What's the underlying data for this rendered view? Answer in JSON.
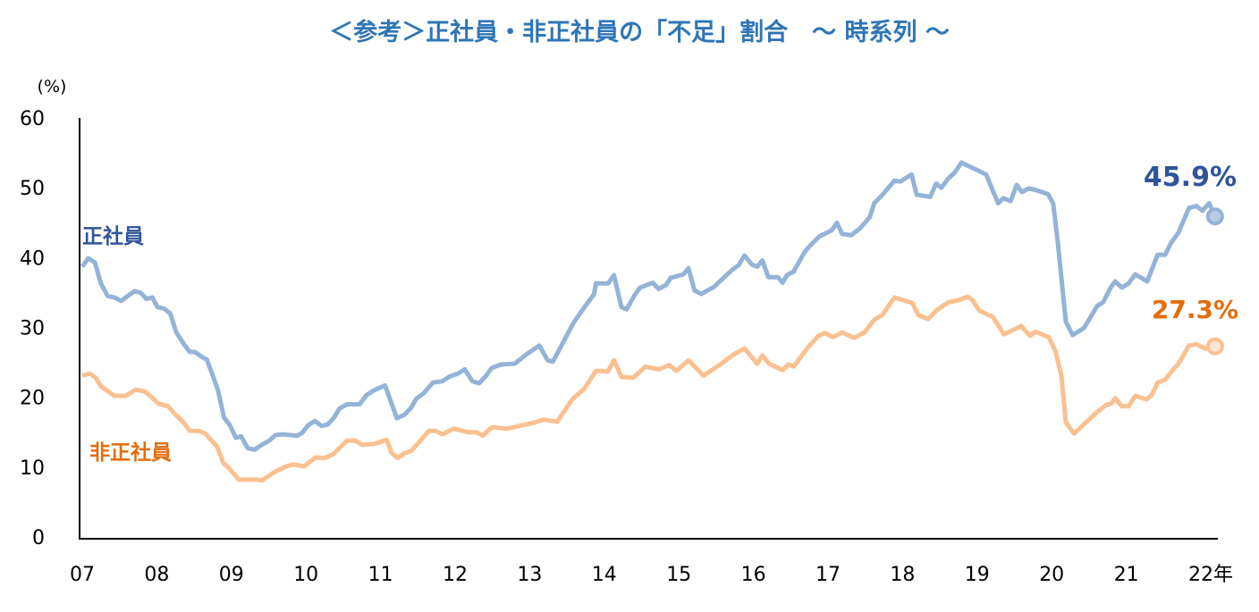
{
  "chart_data": {
    "type": "line",
    "title": "＜参考＞正社員・非正社員の「不足」割合　～ 時系列 ～",
    "ylabel": "(%)",
    "xlabel": "",
    "ylim": [
      0,
      60
    ],
    "yticks": [
      "0",
      "10",
      "20",
      "30",
      "40",
      "50",
      "60"
    ],
    "xlim": [
      2007,
      2022.2
    ],
    "xticks": [
      {
        "year": 2007,
        "label": "07"
      },
      {
        "year": 2008,
        "label": "08"
      },
      {
        "year": 2009,
        "label": "09"
      },
      {
        "year": 2010,
        "label": "10"
      },
      {
        "year": 2011,
        "label": "11"
      },
      {
        "year": 2012,
        "label": "12"
      },
      {
        "year": 2013,
        "label": "13"
      },
      {
        "year": 2014,
        "label": "14"
      },
      {
        "year": 2015,
        "label": "15"
      },
      {
        "year": 2016,
        "label": "16"
      },
      {
        "year": 2017,
        "label": "17"
      },
      {
        "year": 2018,
        "label": "18"
      },
      {
        "year": 2019,
        "label": "19"
      },
      {
        "year": 2020,
        "label": "20"
      },
      {
        "year": 2021,
        "label": "21"
      },
      {
        "year": 2022,
        "label": "22年"
      }
    ],
    "grid": false,
    "series": [
      {
        "name": "正社員",
        "color": "#95b3d7",
        "label_color": "#2f5597",
        "end_label": "45.9%",
        "points": [
          [
            2007.0,
            38.7
          ],
          [
            2007.08,
            39.9
          ],
          [
            2007.17,
            39.3
          ],
          [
            2007.25,
            36.3
          ],
          [
            2007.34,
            34.5
          ],
          [
            2007.43,
            34.3
          ],
          [
            2007.52,
            33.8
          ],
          [
            2007.61,
            34.5
          ],
          [
            2007.7,
            35.2
          ],
          [
            2007.78,
            35.0
          ],
          [
            2007.86,
            34.1
          ],
          [
            2007.94,
            34.3
          ],
          [
            2008.01,
            32.9
          ],
          [
            2008.1,
            32.7
          ],
          [
            2008.18,
            32.0
          ],
          [
            2008.26,
            29.3
          ],
          [
            2008.37,
            27.5
          ],
          [
            2008.44,
            26.5
          ],
          [
            2008.51,
            26.5
          ],
          [
            2008.6,
            25.8
          ],
          [
            2008.67,
            25.4
          ],
          [
            2008.75,
            23.1
          ],
          [
            2008.82,
            21.0
          ],
          [
            2008.9,
            17.1
          ],
          [
            2008.98,
            16.0
          ],
          [
            2009.06,
            14.2
          ],
          [
            2009.13,
            14.4
          ],
          [
            2009.22,
            12.7
          ],
          [
            2009.31,
            12.5
          ],
          [
            2009.41,
            13.2
          ],
          [
            2009.51,
            13.8
          ],
          [
            2009.59,
            14.6
          ],
          [
            2009.69,
            14.7
          ],
          [
            2009.78,
            14.6
          ],
          [
            2009.88,
            14.5
          ],
          [
            2009.95,
            14.9
          ],
          [
            2010.03,
            16.0
          ],
          [
            2010.12,
            16.6
          ],
          [
            2010.21,
            15.9
          ],
          [
            2010.29,
            16.1
          ],
          [
            2010.37,
            17.0
          ],
          [
            2010.45,
            18.4
          ],
          [
            2010.55,
            19.0
          ],
          [
            2010.72,
            19.0
          ],
          [
            2010.81,
            20.3
          ],
          [
            2010.91,
            21.0
          ],
          [
            2011.06,
            21.7
          ],
          [
            2011.22,
            17.0
          ],
          [
            2011.32,
            17.5
          ],
          [
            2011.41,
            18.5
          ],
          [
            2011.48,
            19.8
          ],
          [
            2011.58,
            20.6
          ],
          [
            2011.7,
            22.1
          ],
          [
            2011.83,
            22.3
          ],
          [
            2011.93,
            23.0
          ],
          [
            2012.04,
            23.4
          ],
          [
            2012.13,
            24.0
          ],
          [
            2012.23,
            22.3
          ],
          [
            2012.32,
            22.0
          ],
          [
            2012.41,
            23.0
          ],
          [
            2012.49,
            24.2
          ],
          [
            2012.62,
            24.7
          ],
          [
            2012.8,
            24.8
          ],
          [
            2012.95,
            26.1
          ],
          [
            2013.13,
            27.4
          ],
          [
            2013.24,
            25.3
          ],
          [
            2013.31,
            25.1
          ],
          [
            2013.45,
            27.9
          ],
          [
            2013.59,
            30.7
          ],
          [
            2013.74,
            33.0
          ],
          [
            2013.86,
            34.7
          ],
          [
            2013.89,
            36.3
          ],
          [
            2014.05,
            36.3
          ],
          [
            2014.13,
            37.5
          ],
          [
            2014.23,
            32.9
          ],
          [
            2014.3,
            32.6
          ],
          [
            2014.41,
            34.7
          ],
          [
            2014.48,
            35.7
          ],
          [
            2014.65,
            36.4
          ],
          [
            2014.73,
            35.5
          ],
          [
            2014.83,
            36.1
          ],
          [
            2014.89,
            37.1
          ],
          [
            2015.06,
            37.6
          ],
          [
            2015.13,
            38.5
          ],
          [
            2015.21,
            35.3
          ],
          [
            2015.3,
            34.8
          ],
          [
            2015.47,
            35.8
          ],
          [
            2015.71,
            38.2
          ],
          [
            2015.8,
            38.9
          ],
          [
            2015.88,
            40.3
          ],
          [
            2015.98,
            39.0
          ],
          [
            2016.05,
            38.7
          ],
          [
            2016.12,
            39.6
          ],
          [
            2016.2,
            37.2
          ],
          [
            2016.33,
            37.2
          ],
          [
            2016.39,
            36.4
          ],
          [
            2016.45,
            37.5
          ],
          [
            2016.54,
            38.0
          ],
          [
            2016.68,
            40.7
          ],
          [
            2016.75,
            41.6
          ],
          [
            2016.88,
            43.0
          ],
          [
            2017.05,
            43.9
          ],
          [
            2017.12,
            45.0
          ],
          [
            2017.19,
            43.4
          ],
          [
            2017.31,
            43.2
          ],
          [
            2017.43,
            44.2
          ],
          [
            2017.56,
            45.8
          ],
          [
            2017.62,
            47.8
          ],
          [
            2017.73,
            49.0
          ],
          [
            2017.89,
            51.0
          ],
          [
            2017.97,
            50.9
          ],
          [
            2018.12,
            51.9
          ],
          [
            2018.19,
            49.0
          ],
          [
            2018.37,
            48.7
          ],
          [
            2018.45,
            50.6
          ],
          [
            2018.52,
            50.0
          ],
          [
            2018.61,
            51.3
          ],
          [
            2018.7,
            52.2
          ],
          [
            2018.79,
            53.6
          ],
          [
            2019.12,
            51.9
          ],
          [
            2019.28,
            47.8
          ],
          [
            2019.35,
            48.5
          ],
          [
            2019.45,
            48.1
          ],
          [
            2019.53,
            50.4
          ],
          [
            2019.6,
            49.4
          ],
          [
            2019.69,
            49.9
          ],
          [
            2019.78,
            49.7
          ],
          [
            2019.95,
            49.1
          ],
          [
            2020.02,
            47.7
          ],
          [
            2020.08,
            42.3
          ],
          [
            2020.19,
            30.8
          ],
          [
            2020.28,
            28.9
          ],
          [
            2020.43,
            29.9
          ],
          [
            2020.5,
            31.1
          ],
          [
            2020.61,
            33.1
          ],
          [
            2020.69,
            33.6
          ],
          [
            2020.79,
            35.7
          ],
          [
            2020.85,
            36.6
          ],
          [
            2020.94,
            35.7
          ],
          [
            2021.03,
            36.3
          ],
          [
            2021.12,
            37.6
          ],
          [
            2021.28,
            36.6
          ],
          [
            2021.42,
            40.4
          ],
          [
            2021.52,
            40.4
          ],
          [
            2021.6,
            42.1
          ],
          [
            2021.7,
            43.6
          ],
          [
            2021.84,
            47.1
          ],
          [
            2021.94,
            47.4
          ],
          [
            2022.02,
            46.7
          ],
          [
            2022.11,
            47.8
          ],
          [
            2022.19,
            45.9
          ]
        ]
      },
      {
        "name": "非正社員",
        "color": "#fac090",
        "label_color": "#e46c0a",
        "end_label": "27.3%",
        "points": [
          [
            2007.0,
            23.1
          ],
          [
            2007.1,
            23.4
          ],
          [
            2007.18,
            22.8
          ],
          [
            2007.25,
            21.6
          ],
          [
            2007.43,
            20.2
          ],
          [
            2007.58,
            20.2
          ],
          [
            2007.72,
            21.1
          ],
          [
            2007.84,
            20.8
          ],
          [
            2007.91,
            20.2
          ],
          [
            2008.02,
            19.1
          ],
          [
            2008.15,
            18.7
          ],
          [
            2008.26,
            17.4
          ],
          [
            2008.35,
            16.5
          ],
          [
            2008.44,
            15.2
          ],
          [
            2008.56,
            15.2
          ],
          [
            2008.65,
            14.8
          ],
          [
            2008.81,
            12.9
          ],
          [
            2008.89,
            10.6
          ],
          [
            2008.98,
            9.7
          ],
          [
            2009.1,
            8.2
          ],
          [
            2009.34,
            8.2
          ],
          [
            2009.41,
            8.1
          ],
          [
            2009.58,
            9.3
          ],
          [
            2009.73,
            10.1
          ],
          [
            2009.83,
            10.4
          ],
          [
            2009.97,
            10.1
          ],
          [
            2010.13,
            11.4
          ],
          [
            2010.25,
            11.3
          ],
          [
            2010.37,
            11.9
          ],
          [
            2010.55,
            13.8
          ],
          [
            2010.66,
            13.8
          ],
          [
            2010.75,
            13.2
          ],
          [
            2010.91,
            13.3
          ],
          [
            2011.08,
            13.9
          ],
          [
            2011.15,
            12.0
          ],
          [
            2011.23,
            11.3
          ],
          [
            2011.32,
            12.0
          ],
          [
            2011.41,
            12.3
          ],
          [
            2011.65,
            15.2
          ],
          [
            2011.74,
            15.2
          ],
          [
            2011.83,
            14.7
          ],
          [
            2011.98,
            15.5
          ],
          [
            2012.17,
            15.0
          ],
          [
            2012.29,
            15.0
          ],
          [
            2012.37,
            14.5
          ],
          [
            2012.49,
            15.7
          ],
          [
            2012.7,
            15.5
          ],
          [
            2013.07,
            16.4
          ],
          [
            2013.18,
            16.8
          ],
          [
            2013.37,
            16.5
          ],
          [
            2013.57,
            19.7
          ],
          [
            2013.73,
            21.2
          ],
          [
            2013.89,
            23.8
          ],
          [
            2014.05,
            23.7
          ],
          [
            2014.13,
            25.3
          ],
          [
            2014.23,
            22.9
          ],
          [
            2014.39,
            22.8
          ],
          [
            2014.55,
            24.4
          ],
          [
            2014.73,
            24.0
          ],
          [
            2014.87,
            24.6
          ],
          [
            2014.97,
            23.8
          ],
          [
            2015.13,
            25.3
          ],
          [
            2015.33,
            23.1
          ],
          [
            2015.57,
            24.8
          ],
          [
            2015.73,
            26.1
          ],
          [
            2015.88,
            27.0
          ],
          [
            2016.05,
            24.8
          ],
          [
            2016.12,
            26.0
          ],
          [
            2016.21,
            24.8
          ],
          [
            2016.39,
            23.9
          ],
          [
            2016.47,
            24.7
          ],
          [
            2016.54,
            24.4
          ],
          [
            2016.72,
            27.0
          ],
          [
            2016.87,
            28.8
          ],
          [
            2016.96,
            29.2
          ],
          [
            2017.07,
            28.6
          ],
          [
            2017.19,
            29.3
          ],
          [
            2017.35,
            28.5
          ],
          [
            2017.49,
            29.3
          ],
          [
            2017.62,
            31.1
          ],
          [
            2017.73,
            31.8
          ],
          [
            2017.89,
            34.3
          ],
          [
            2018.13,
            33.5
          ],
          [
            2018.21,
            31.8
          ],
          [
            2018.34,
            31.2
          ],
          [
            2018.46,
            32.5
          ],
          [
            2018.61,
            33.6
          ],
          [
            2018.75,
            33.9
          ],
          [
            2018.87,
            34.4
          ],
          [
            2018.93,
            34.0
          ],
          [
            2019.03,
            32.4
          ],
          [
            2019.21,
            31.5
          ],
          [
            2019.36,
            29.0
          ],
          [
            2019.59,
            30.2
          ],
          [
            2019.71,
            28.8
          ],
          [
            2019.78,
            29.4
          ],
          [
            2019.96,
            28.6
          ],
          [
            2020.05,
            26.6
          ],
          [
            2020.13,
            23.1
          ],
          [
            2020.19,
            16.4
          ],
          [
            2020.3,
            14.8
          ],
          [
            2020.5,
            16.8
          ],
          [
            2020.61,
            17.9
          ],
          [
            2020.73,
            18.9
          ],
          [
            2020.8,
            19.1
          ],
          [
            2020.85,
            19.9
          ],
          [
            2020.94,
            18.7
          ],
          [
            2021.03,
            18.7
          ],
          [
            2021.12,
            20.2
          ],
          [
            2021.27,
            19.7
          ],
          [
            2021.34,
            20.3
          ],
          [
            2021.42,
            22.1
          ],
          [
            2021.52,
            22.5
          ],
          [
            2021.63,
            24.0
          ],
          [
            2021.7,
            24.8
          ],
          [
            2021.84,
            27.4
          ],
          [
            2021.94,
            27.6
          ],
          [
            2022.05,
            27.0
          ],
          [
            2022.19,
            27.3
          ]
        ]
      }
    ]
  }
}
